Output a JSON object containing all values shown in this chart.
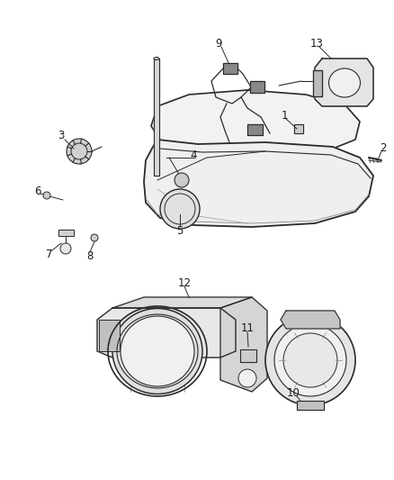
{
  "bg_color": "#ffffff",
  "line_color": "#2a2a2a",
  "text_color": "#1a1a1a",
  "label_fontsize": 8.5,
  "figsize": [
    4.38,
    5.33
  ],
  "dpi": 100
}
